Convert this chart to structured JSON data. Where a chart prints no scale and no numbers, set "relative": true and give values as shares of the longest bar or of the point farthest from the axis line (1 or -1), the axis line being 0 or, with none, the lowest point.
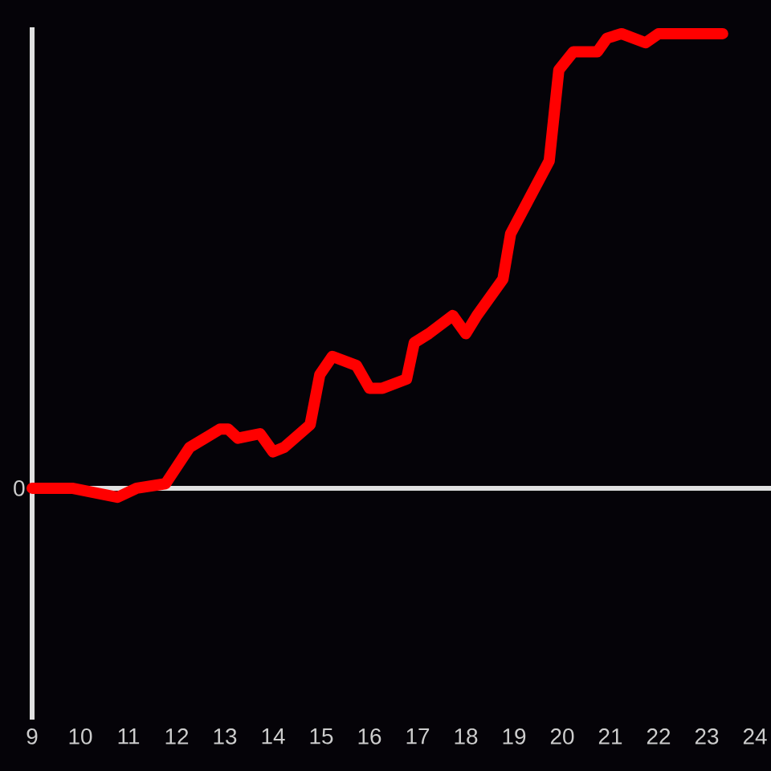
{
  "chart_data": {
    "type": "line",
    "relative": true,
    "x": [
      9.0,
      9.83,
      10.77,
      11.17,
      11.77,
      12.27,
      12.9,
      13.07,
      13.27,
      13.73,
      14.0,
      14.23,
      14.77,
      14.97,
      15.23,
      15.73,
      16.0,
      16.27,
      16.77,
      16.93,
      17.23,
      17.73,
      18.0,
      18.23,
      18.77,
      18.93,
      19.73,
      19.93,
      20.23,
      20.73,
      20.93,
      21.23,
      21.73,
      22.0,
      23.33
    ],
    "series": [
      {
        "color": "#ff0000",
        "values": [
          0,
          0,
          -0.02,
          0.0,
          0.01,
          0.09,
          0.13,
          0.13,
          0.11,
          0.12,
          0.08,
          0.09,
          0.14,
          0.25,
          0.29,
          0.27,
          0.22,
          0.22,
          0.24,
          0.32,
          0.34,
          0.38,
          0.34,
          0.38,
          0.46,
          0.56,
          0.72,
          0.92,
          0.96,
          0.96,
          0.99,
          1.0,
          0.98,
          1.0,
          1.0
        ]
      }
    ],
    "xlim": [
      9,
      24
    ],
    "xticks": [
      9,
      10,
      11,
      12,
      13,
      14,
      15,
      16,
      17,
      18,
      19,
      20,
      21,
      22,
      23,
      24
    ],
    "annotations": [
      {
        "text": "0",
        "x": 9,
        "y": 0
      }
    ],
    "marker": "none",
    "line_style": "solid"
  }
}
